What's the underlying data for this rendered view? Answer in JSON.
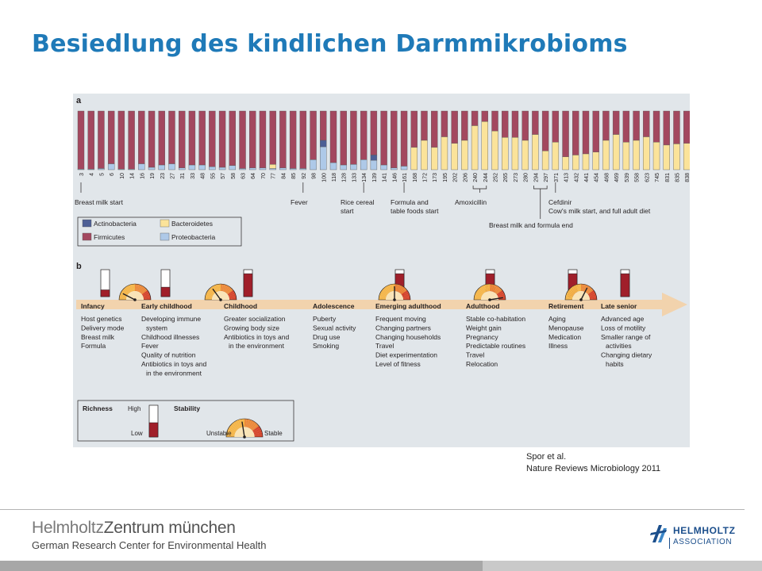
{
  "slide": {
    "title": "Besiedlung des kindlichen Darmmikrobioms",
    "citation_line1": "Spor et al.",
    "citation_line2": "Nature Reviews Microbiology 2011"
  },
  "footer": {
    "logo_name_a": "Helmholtz",
    "logo_name_b": "Zentrum münchen",
    "logo_sub": "German Research Center for Environmental Health",
    "association_word1": "HELMHOLTZ",
    "association_word2": "ASSOCIATION"
  },
  "colors": {
    "title": "#1f7ab8",
    "actinobacteria": "#4d5f95",
    "bacteroidetes": "#fbe39a",
    "firmicutes": "#a3485f",
    "proteobacteria": "#aec9e8",
    "richness": "#a01f2a",
    "arrow": "#f2d3ad"
  },
  "chart_data": [
    {
      "type": "bar",
      "panel_label": "a",
      "stacked": true,
      "normalized": true,
      "categories": [
        "3",
        "4",
        "5",
        "6",
        "10",
        "14",
        "16",
        "19",
        "23",
        "27",
        "31",
        "33",
        "48",
        "55",
        "57",
        "58",
        "63",
        "64",
        "70",
        "77",
        "84",
        "85",
        "92",
        "98",
        "100",
        "118",
        "128",
        "133",
        "134",
        "139",
        "141",
        "146",
        "161",
        "168",
        "172",
        "173",
        "195",
        "202",
        "206",
        "240",
        "244",
        "252",
        "265",
        "273",
        "280",
        "294",
        "297",
        "371",
        "413",
        "432",
        "441",
        "454",
        "468",
        "469",
        "539",
        "558",
        "623",
        "745",
        "831",
        "835",
        "838"
      ],
      "series": [
        {
          "name": "Actinobacteria",
          "values": [
            0,
            0,
            0,
            0,
            0,
            0,
            0,
            0,
            0,
            0,
            0,
            0,
            0,
            0,
            0,
            0,
            0,
            0,
            0,
            0,
            0,
            0,
            0,
            0,
            0.11,
            0,
            0,
            0,
            0,
            0.09,
            0,
            0,
            0,
            0,
            0,
            0,
            0,
            0,
            0,
            0,
            0,
            0,
            0,
            0,
            0,
            0,
            0,
            0,
            0,
            0,
            0,
            0,
            0,
            0,
            0,
            0,
            0,
            0,
            0,
            0,
            0
          ]
        },
        {
          "name": "Bacteroidetes",
          "values": [
            0,
            0,
            0,
            0,
            0,
            0,
            0,
            0,
            0,
            0,
            0,
            0,
            0,
            0,
            0,
            0,
            0,
            0,
            0,
            0.07,
            0,
            0,
            0,
            0,
            0,
            0,
            0,
            0,
            0,
            0,
            0,
            0,
            0,
            0.38,
            0.5,
            0.38,
            0.56,
            0.45,
            0.5,
            0.75,
            0.82,
            0.66,
            0.55,
            0.55,
            0.5,
            0.6,
            0.32,
            0.47,
            0.22,
            0.25,
            0.27,
            0.3,
            0.5,
            0.6,
            0.47,
            0.5,
            0.56,
            0.47,
            0.42,
            0.44,
            0.45
          ]
        },
        {
          "name": "Firmicutes",
          "values": [
            0.99,
            0.99,
            0.98,
            0.9,
            0.99,
            0.99,
            0.9,
            0.96,
            0.92,
            0.9,
            0.97,
            0.92,
            0.92,
            0.95,
            0.96,
            0.93,
            0.98,
            0.97,
            0.97,
            0.91,
            0.97,
            0.98,
            0.98,
            0.83,
            0.5,
            0.88,
            0.92,
            0.91,
            0.83,
            0.75,
            0.92,
            0.97,
            0.94,
            0.62,
            0.5,
            0.62,
            0.44,
            0.55,
            0.5,
            0.25,
            0.18,
            0.34,
            0.45,
            0.45,
            0.5,
            0.4,
            0.68,
            0.53,
            0.78,
            0.75,
            0.73,
            0.7,
            0.5,
            0.4,
            0.53,
            0.5,
            0.44,
            0.53,
            0.58,
            0.56,
            0.55
          ]
        },
        {
          "name": "Proteobacteria",
          "values": [
            0.01,
            0.01,
            0.02,
            0.1,
            0.01,
            0.01,
            0.1,
            0.04,
            0.08,
            0.1,
            0.03,
            0.08,
            0.08,
            0.05,
            0.04,
            0.07,
            0.02,
            0.03,
            0.03,
            0.02,
            0.03,
            0.02,
            0.02,
            0.17,
            0.39,
            0.12,
            0.08,
            0.09,
            0.17,
            0.16,
            0.08,
            0.03,
            0.06,
            0,
            0,
            0,
            0,
            0,
            0,
            0,
            0,
            0,
            0,
            0,
            0,
            0,
            0,
            0,
            0,
            0,
            0,
            0,
            0,
            0,
            0,
            0,
            0,
            0,
            0,
            0,
            0
          ]
        }
      ],
      "annotations": [
        {
          "at": "3",
          "text": "Breast milk start"
        },
        {
          "at": "92",
          "text": "Fever"
        },
        {
          "at": "134",
          "text": "Rice cereal start"
        },
        {
          "at": "161",
          "text": "Formula and table foods start"
        },
        {
          "at": "244",
          "text": "Amoxicillin"
        },
        {
          "at": "297",
          "text": "Breast milk and formula end"
        },
        {
          "at": "371",
          "text": "Cefdinir"
        },
        {
          "at": "371",
          "text": "Cow's milk start, and full adult diet"
        }
      ],
      "legend_position": "bottom-left"
    },
    {
      "type": "table",
      "panel_label": "b",
      "stages": [
        {
          "name": "Infancy",
          "factors": [
            "Host genetics",
            "Delivery mode",
            "Breast milk",
            "Formula"
          ],
          "richness": 0.25,
          "stability": 0.15
        },
        {
          "name": "Early childhood",
          "factors": [
            "Developing immune",
            "  system",
            "Childhood illnesses",
            "Fever",
            "Quality of nutrition",
            "Antibiotics in toys and",
            "  in the environment"
          ],
          "richness": 0.35,
          "stability": 0.3
        },
        {
          "name": "Childhood",
          "factors": [
            "Greater socialization",
            "Growing body size",
            "Antibiotics in toys and",
            "  in the environment"
          ],
          "richness": 0.85,
          "stability": 0.4
        },
        {
          "name": "Adolescence",
          "factors": [
            "Puberty",
            "Sexual activity",
            "Drug use",
            "Smoking"
          ],
          "richness": null,
          "stability": null
        },
        {
          "name": "Emerging adulthood",
          "factors": [
            "Frequent moving",
            "Changing partners",
            "Changing households",
            "Travel",
            "Diet experimentation",
            "Level of fitness"
          ],
          "richness": 0.85,
          "stability": 0.5
        },
        {
          "name": "Adulthood",
          "factors": [
            "Stable co-habitation",
            "Weight gain",
            "Pregnancy",
            "Predictable routines",
            "Travel",
            "Relocation"
          ],
          "richness": 0.85,
          "stability": 0.95
        },
        {
          "name": "Retirement",
          "factors": [
            "Aging",
            "Menopause",
            "Medication",
            "Illness"
          ],
          "richness": 0.85,
          "stability": 0.65
        },
        {
          "name": "Late senior",
          "factors": [
            "Advanced age",
            "Loss of motility",
            "Smaller range of",
            "  activities",
            "Changing dietary",
            "  habits"
          ],
          "richness": 0.85,
          "stability": null
        }
      ],
      "key": {
        "richness_label": "Richness",
        "high_label": "High",
        "low_label": "Low",
        "stability_label": "Stability",
        "unstable_label": "Unstable",
        "stable_label": "Stable"
      }
    }
  ]
}
